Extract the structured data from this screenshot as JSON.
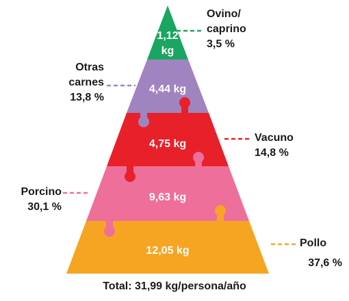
{
  "layers": [
    {
      "name": [
        "Ovino/",
        "caprino"
      ],
      "kg": "1,12 kg",
      "share": "3,5 %"
    },
    {
      "name": [
        "Otras",
        "carnes"
      ],
      "kg": "4,44 kg",
      "share": "13,8 %"
    },
    {
      "name": [
        "Vacuno"
      ],
      "kg": "4,75 kg",
      "share": "14,8 %"
    },
    {
      "name": [
        "Porcino"
      ],
      "kg": "9,63 kg",
      "share": "30,1 %"
    },
    {
      "name": [
        "Pollo"
      ],
      "kg": "12,05 kg",
      "share": "37,6 %"
    }
  ],
  "total": "Total: 31,99 kg/persona/año"
}
